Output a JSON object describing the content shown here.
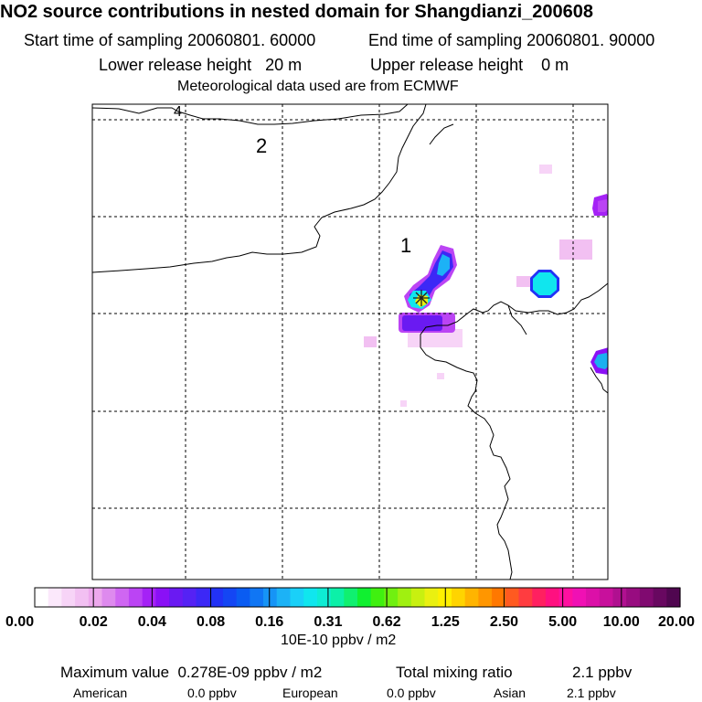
{
  "title": "NO2 source contributions in nested domain for Shangdianzi_200608",
  "sampling": {
    "start": "Start time of sampling 20060801. 60000",
    "end": "End time of sampling 20060801. 90000"
  },
  "release": {
    "lower": "Lower release height   20 m",
    "upper": "Upper release height    0 m"
  },
  "meteo": "Meteorological data used are from ECMWF",
  "map_labels": {
    "label_1": "1",
    "label_2": "2",
    "label_4": "4"
  },
  "colorbar": {
    "ticks": [
      "0.00",
      "0.02",
      "0.04",
      "0.08",
      "0.16",
      "0.31",
      "0.62",
      "1.25",
      "2.50",
      "5.00",
      "10.00",
      "20.00"
    ],
    "colors": [
      "#ffffff",
      "#fbe8fb",
      "#f7d4f7",
      "#f2c0f2",
      "#eda8ed",
      "#de8aee",
      "#cf66f2",
      "#bb44f4",
      "#a522f6",
      "#8a10f6",
      "#6a1af2",
      "#5522f4",
      "#3c28f6",
      "#2232f6",
      "#1446f4",
      "#0a5cf2",
      "#1076f4",
      "#1694f6",
      "#1cb2f6",
      "#1ad0f8",
      "#10e6ee",
      "#0eecd4",
      "#0cf0a8",
      "#10f070",
      "#10f030",
      "#40f010",
      "#70f010",
      "#a0f010",
      "#c8f010",
      "#eaf010",
      "#fff000",
      "#ffd400",
      "#ffb400",
      "#ff9600",
      "#ff7800",
      "#ff5a20",
      "#ff3c40",
      "#ff2060",
      "#ff1080",
      "#ff10a0",
      "#f010b4",
      "#dc10a8",
      "#c8109c",
      "#b01090",
      "#980c80",
      "#800a70",
      "#680860",
      "#500650"
    ],
    "units": "10E-10 ppbv / m2"
  },
  "summary": {
    "max_label": "Maximum value  0.278E-09 ppbv / m2",
    "total_label": "Total mixing ratio",
    "total_value": "2.1 ppbv",
    "american_label": "American",
    "american_value": "0.0 ppbv",
    "european_label": "European",
    "european_value": "0.0 ppbv",
    "asian_label": "Asian",
    "asian_value": "2.1 ppbv"
  },
  "palette": {
    "border": "#000000",
    "grid": "#000000",
    "station_marker": "#f0e020"
  }
}
